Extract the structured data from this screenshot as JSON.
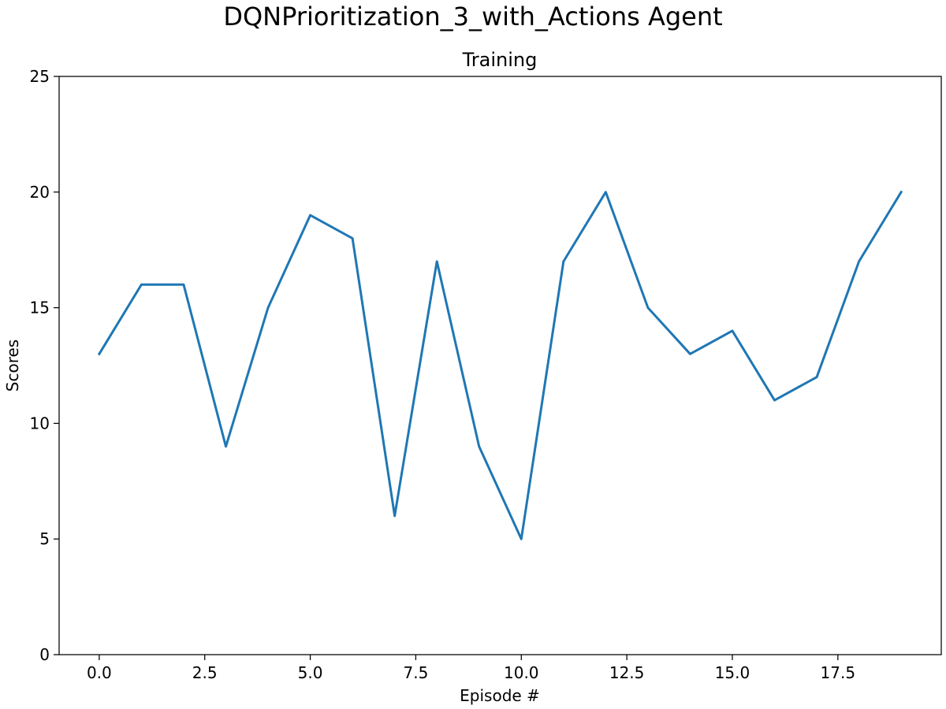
{
  "chart_data": {
    "type": "line",
    "title": "DQNPrioritization_3_with_Actions Agent",
    "subtitle": "Training",
    "xlabel": "Episode #",
    "ylabel": "Scores",
    "xlim": [
      -0.95,
      19.95
    ],
    "ylim": [
      0,
      25
    ],
    "x_ticks": [
      0.0,
      2.5,
      5.0,
      7.5,
      10.0,
      12.5,
      15.0,
      17.5
    ],
    "x_tick_labels": [
      "0.0",
      "2.5",
      "5.0",
      "7.5",
      "10.0",
      "12.5",
      "15.0",
      "17.5"
    ],
    "y_ticks": [
      0,
      5,
      10,
      15,
      20,
      25
    ],
    "y_tick_labels": [
      "0",
      "5",
      "10",
      "15",
      "20",
      "25"
    ],
    "grid": false,
    "series": [
      {
        "color": "#1f77b4",
        "x": [
          0,
          1,
          2,
          3,
          4,
          5,
          6,
          7,
          8,
          9,
          10,
          11,
          12,
          13,
          14,
          15,
          16,
          17,
          18,
          19
        ],
        "values": [
          13,
          16,
          16,
          9,
          15,
          19,
          18,
          6,
          17,
          9,
          5,
          17,
          20,
          15,
          13,
          14,
          11,
          12,
          17,
          20
        ]
      }
    ]
  }
}
